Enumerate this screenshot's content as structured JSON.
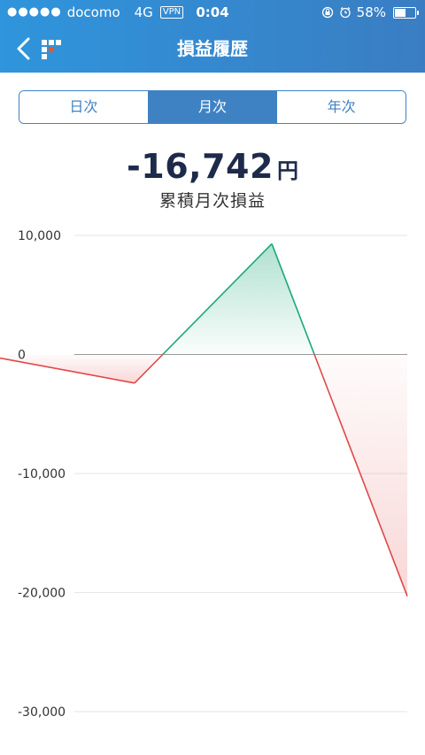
{
  "status_bar": {
    "carrier": "docomo",
    "network": "4G",
    "vpn": "VPN",
    "time": "0:04",
    "battery": "58%",
    "battery_level": 0.58
  },
  "nav": {
    "title": "損益履歴"
  },
  "segment": {
    "options": [
      "日次",
      "月次",
      "年次"
    ],
    "selected": "月次"
  },
  "summary": {
    "value": "-16,742",
    "unit": "円",
    "label": "累積月次損益"
  },
  "chart_data": {
    "type": "area",
    "title": "",
    "xlabel": "",
    "ylabel": "",
    "ylim": [
      -30000,
      10000
    ],
    "yticks": [
      10000,
      0,
      -10000,
      -20000,
      -30000
    ],
    "ytick_labels": [
      "10,000",
      "0",
      "-10,000",
      "-20,000",
      "-30,000"
    ],
    "x": [
      0,
      1,
      2,
      3
    ],
    "values": [
      -300,
      -2400,
      9300,
      -20300
    ],
    "colors": {
      "positive": "#1aa87a",
      "negative": "#e04848"
    }
  }
}
